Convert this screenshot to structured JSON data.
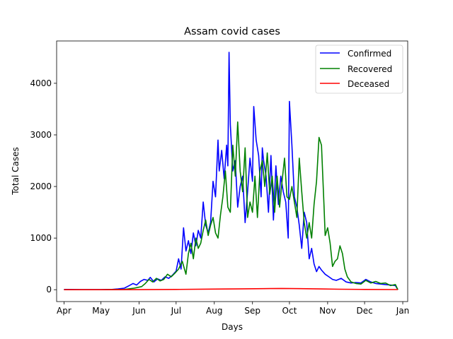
{
  "chart_data": {
    "type": "line",
    "title": "Assam covid cases",
    "xlabel": "Days",
    "ylabel": "Total Cases",
    "x_ticks": [
      {
        "label": "Apr",
        "date": "2020-04-01"
      },
      {
        "label": "May",
        "date": "2020-05-01"
      },
      {
        "label": "Jun",
        "date": "2020-06-01"
      },
      {
        "label": "Jul",
        "date": "2020-07-01"
      },
      {
        "label": "Aug",
        "date": "2020-08-01"
      },
      {
        "label": "Sep",
        "date": "2020-09-01"
      },
      {
        "label": "Oct",
        "date": "2020-10-01"
      },
      {
        "label": "Nov",
        "date": "2020-11-01"
      },
      {
        "label": "Dec",
        "date": "2020-12-01"
      },
      {
        "label": "Jan",
        "date": "2021-01-01"
      }
    ],
    "y_ticks": [
      0,
      1000,
      2000,
      3000,
      4000
    ],
    "xlim": [
      "2020-03-26",
      "2021-01-05"
    ],
    "ylim": [
      -230,
      4820
    ],
    "grid": false,
    "legend_position": "top-right",
    "series": [
      {
        "name": "Confirmed",
        "color": "#0000ff",
        "points": [
          [
            "2020-04-01",
            5
          ],
          [
            "2020-04-15",
            2
          ],
          [
            "2020-05-01",
            3
          ],
          [
            "2020-05-10",
            5
          ],
          [
            "2020-05-15",
            15
          ],
          [
            "2020-05-20",
            30
          ],
          [
            "2020-05-24",
            80
          ],
          [
            "2020-05-27",
            120
          ],
          [
            "2020-05-30",
            90
          ],
          [
            "2020-06-02",
            160
          ],
          [
            "2020-06-05",
            200
          ],
          [
            "2020-06-08",
            180
          ],
          [
            "2020-06-10",
            240
          ],
          [
            "2020-06-13",
            150
          ],
          [
            "2020-06-16",
            210
          ],
          [
            "2020-06-19",
            180
          ],
          [
            "2020-06-22",
            250
          ],
          [
            "2020-06-25",
            220
          ],
          [
            "2020-06-28",
            280
          ],
          [
            "2020-07-01",
            360
          ],
          [
            "2020-07-03",
            600
          ],
          [
            "2020-07-05",
            400
          ],
          [
            "2020-07-07",
            1200
          ],
          [
            "2020-07-09",
            750
          ],
          [
            "2020-07-11",
            950
          ],
          [
            "2020-07-13",
            700
          ],
          [
            "2020-07-15",
            1100
          ],
          [
            "2020-07-17",
            850
          ],
          [
            "2020-07-19",
            1150
          ],
          [
            "2020-07-21",
            1000
          ],
          [
            "2020-07-23",
            1700
          ],
          [
            "2020-07-25",
            1250
          ],
          [
            "2020-07-27",
            1100
          ],
          [
            "2020-07-29",
            1300
          ],
          [
            "2020-07-31",
            2100
          ],
          [
            "2020-08-02",
            1800
          ],
          [
            "2020-08-04",
            2900
          ],
          [
            "2020-08-05",
            2300
          ],
          [
            "2020-08-07",
            2700
          ],
          [
            "2020-08-09",
            2150
          ],
          [
            "2020-08-11",
            2800
          ],
          [
            "2020-08-12",
            2400
          ],
          [
            "2020-08-13",
            4600
          ],
          [
            "2020-08-14",
            3200
          ],
          [
            "2020-08-16",
            2300
          ],
          [
            "2020-08-18",
            2500
          ],
          [
            "2020-08-20",
            1600
          ],
          [
            "2020-08-22",
            2000
          ],
          [
            "2020-08-24",
            2200
          ],
          [
            "2020-08-26",
            1300
          ],
          [
            "2020-08-28",
            1900
          ],
          [
            "2020-08-30",
            2550
          ],
          [
            "2020-09-01",
            2100
          ],
          [
            "2020-09-02",
            3550
          ],
          [
            "2020-09-04",
            2900
          ],
          [
            "2020-09-06",
            2600
          ],
          [
            "2020-09-08",
            1800
          ],
          [
            "2020-09-09",
            2750
          ],
          [
            "2020-09-10",
            2500
          ],
          [
            "2020-09-12",
            2200
          ],
          [
            "2020-09-14",
            1500
          ],
          [
            "2020-09-16",
            2600
          ],
          [
            "2020-09-18",
            1350
          ],
          [
            "2020-09-20",
            2400
          ],
          [
            "2020-09-22",
            1650
          ],
          [
            "2020-09-24",
            2200
          ],
          [
            "2020-09-26",
            1900
          ],
          [
            "2020-09-28",
            1700
          ],
          [
            "2020-09-30",
            1000
          ],
          [
            "2020-10-01",
            3650
          ],
          [
            "2020-10-03",
            2800
          ],
          [
            "2020-10-05",
            1800
          ],
          [
            "2020-10-07",
            1600
          ],
          [
            "2020-10-09",
            1250
          ],
          [
            "2020-10-11",
            800
          ],
          [
            "2020-10-13",
            1500
          ],
          [
            "2020-10-15",
            1300
          ],
          [
            "2020-10-17",
            600
          ],
          [
            "2020-10-19",
            800
          ],
          [
            "2020-10-21",
            500
          ],
          [
            "2020-10-23",
            350
          ],
          [
            "2020-10-25",
            450
          ],
          [
            "2020-10-27",
            380
          ],
          [
            "2020-10-30",
            300
          ],
          [
            "2020-11-02",
            250
          ],
          [
            "2020-11-05",
            200
          ],
          [
            "2020-11-08",
            180
          ],
          [
            "2020-11-12",
            220
          ],
          [
            "2020-11-16",
            150
          ],
          [
            "2020-11-20",
            130
          ],
          [
            "2020-11-24",
            140
          ],
          [
            "2020-11-28",
            130
          ],
          [
            "2020-12-02",
            200
          ],
          [
            "2020-12-06",
            150
          ],
          [
            "2020-12-10",
            120
          ],
          [
            "2020-12-14",
            110
          ],
          [
            "2020-12-18",
            100
          ],
          [
            "2020-12-22",
            90
          ],
          [
            "2020-12-26",
            80
          ],
          [
            "2020-12-28",
            0
          ]
        ]
      },
      {
        "name": "Recovered",
        "color": "#008000",
        "points": [
          [
            "2020-04-01",
            0
          ],
          [
            "2020-05-01",
            0
          ],
          [
            "2020-05-20",
            5
          ],
          [
            "2020-05-28",
            30
          ],
          [
            "2020-06-03",
            60
          ],
          [
            "2020-06-06",
            120
          ],
          [
            "2020-06-09",
            200
          ],
          [
            "2020-06-12",
            150
          ],
          [
            "2020-06-15",
            220
          ],
          [
            "2020-06-18",
            170
          ],
          [
            "2020-06-21",
            200
          ],
          [
            "2020-06-24",
            300
          ],
          [
            "2020-06-27",
            250
          ],
          [
            "2020-06-30",
            320
          ],
          [
            "2020-07-03",
            400
          ],
          [
            "2020-07-06",
            550
          ],
          [
            "2020-07-09",
            300
          ],
          [
            "2020-07-11",
            700
          ],
          [
            "2020-07-13",
            900
          ],
          [
            "2020-07-15",
            600
          ],
          [
            "2020-07-17",
            1000
          ],
          [
            "2020-07-19",
            800
          ],
          [
            "2020-07-21",
            900
          ],
          [
            "2020-07-23",
            1150
          ],
          [
            "2020-07-25",
            1350
          ],
          [
            "2020-07-27",
            1050
          ],
          [
            "2020-07-29",
            1250
          ],
          [
            "2020-07-31",
            1400
          ],
          [
            "2020-08-02",
            1100
          ],
          [
            "2020-08-04",
            1000
          ],
          [
            "2020-08-06",
            1450
          ],
          [
            "2020-08-08",
            1800
          ],
          [
            "2020-08-10",
            2300
          ],
          [
            "2020-08-12",
            1600
          ],
          [
            "2020-08-14",
            1500
          ],
          [
            "2020-08-16",
            2800
          ],
          [
            "2020-08-18",
            2200
          ],
          [
            "2020-08-20",
            3250
          ],
          [
            "2020-08-22",
            2300
          ],
          [
            "2020-08-24",
            1900
          ],
          [
            "2020-08-26",
            2750
          ],
          [
            "2020-08-28",
            1400
          ],
          [
            "2020-08-30",
            1700
          ],
          [
            "2020-09-01",
            1500
          ],
          [
            "2020-09-03",
            2200
          ],
          [
            "2020-09-05",
            1400
          ],
          [
            "2020-09-07",
            2300
          ],
          [
            "2020-09-09",
            2500
          ],
          [
            "2020-09-11",
            2000
          ],
          [
            "2020-09-13",
            2650
          ],
          [
            "2020-09-15",
            1850
          ],
          [
            "2020-09-17",
            2200
          ],
          [
            "2020-09-19",
            1500
          ],
          [
            "2020-09-21",
            2200
          ],
          [
            "2020-09-23",
            1600
          ],
          [
            "2020-09-25",
            2100
          ],
          [
            "2020-09-27",
            2550
          ],
          [
            "2020-09-29",
            1800
          ],
          [
            "2020-10-01",
            1750
          ],
          [
            "2020-10-03",
            2000
          ],
          [
            "2020-10-05",
            1700
          ],
          [
            "2020-10-07",
            1400
          ],
          [
            "2020-10-09",
            2550
          ],
          [
            "2020-10-11",
            1900
          ],
          [
            "2020-10-13",
            1300
          ],
          [
            "2020-10-15",
            1000
          ],
          [
            "2020-10-17",
            1300
          ],
          [
            "2020-10-19",
            1000
          ],
          [
            "2020-10-21",
            1650
          ],
          [
            "2020-10-23",
            2100
          ],
          [
            "2020-10-25",
            2950
          ],
          [
            "2020-10-27",
            2800
          ],
          [
            "2020-10-29",
            1650
          ],
          [
            "2020-10-30",
            1050
          ],
          [
            "2020-11-01",
            1200
          ],
          [
            "2020-11-03",
            900
          ],
          [
            "2020-11-05",
            450
          ],
          [
            "2020-11-07",
            550
          ],
          [
            "2020-11-09",
            600
          ],
          [
            "2020-11-11",
            850
          ],
          [
            "2020-11-13",
            700
          ],
          [
            "2020-11-15",
            400
          ],
          [
            "2020-11-17",
            250
          ],
          [
            "2020-11-20",
            150
          ],
          [
            "2020-11-24",
            120
          ],
          [
            "2020-11-28",
            110
          ],
          [
            "2020-12-02",
            180
          ],
          [
            "2020-12-06",
            130
          ],
          [
            "2020-12-10",
            160
          ],
          [
            "2020-12-14",
            120
          ],
          [
            "2020-12-18",
            130
          ],
          [
            "2020-12-22",
            80
          ],
          [
            "2020-12-26",
            100
          ],
          [
            "2020-12-28",
            0
          ]
        ]
      },
      {
        "name": "Deceased",
        "color": "#ff0000",
        "points": [
          [
            "2020-04-01",
            0
          ],
          [
            "2020-05-01",
            0
          ],
          [
            "2020-06-01",
            1
          ],
          [
            "2020-07-01",
            6
          ],
          [
            "2020-08-01",
            12
          ],
          [
            "2020-08-20",
            15
          ],
          [
            "2020-09-10",
            20
          ],
          [
            "2020-09-25",
            25
          ],
          [
            "2020-10-10",
            20
          ],
          [
            "2020-10-25",
            15
          ],
          [
            "2020-11-10",
            10
          ],
          [
            "2020-12-01",
            6
          ],
          [
            "2020-12-28",
            3
          ]
        ]
      }
    ]
  }
}
